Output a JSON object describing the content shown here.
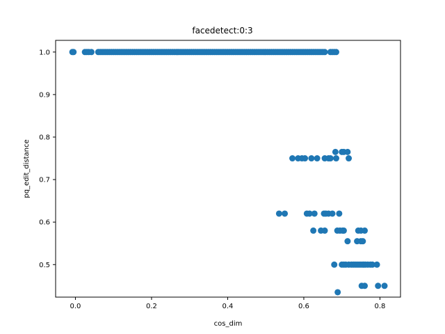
{
  "chart_data": {
    "type": "scatter",
    "title": "facedetect:0:3",
    "xlabel": "cos_dim",
    "ylabel": "pq_edit_distance",
    "xlim": [
      -0.052,
      0.854
    ],
    "ylim": [
      0.4235,
      1.0275
    ],
    "xticks": [
      0.0,
      0.2,
      0.4,
      0.6,
      0.8
    ],
    "xtick_labels": [
      "0.0",
      "0.2",
      "0.4",
      "0.6",
      "0.8"
    ],
    "yticks": [
      0.5,
      0.6,
      0.7,
      0.8,
      0.9,
      1.0
    ],
    "ytick_labels": [
      "0.5",
      "0.6",
      "0.7",
      "0.8",
      "0.9",
      "1.0"
    ],
    "grid": false,
    "marker_color": "#1f77b4",
    "series": [
      {
        "x": [
          -0.008,
          -0.005,
          0.025,
          0.03,
          0.035,
          0.042,
          0.06,
          0.065,
          0.07,
          0.075,
          0.08,
          0.085,
          0.09,
          0.095,
          0.1,
          0.105,
          0.11,
          0.115,
          0.12,
          0.125,
          0.13,
          0.135,
          0.14,
          0.145,
          0.15,
          0.155,
          0.16,
          0.165,
          0.17,
          0.175,
          0.18,
          0.185,
          0.19,
          0.195,
          0.2,
          0.205,
          0.21,
          0.215,
          0.22,
          0.225,
          0.23,
          0.235,
          0.24,
          0.245,
          0.25,
          0.255,
          0.26,
          0.265,
          0.27,
          0.275,
          0.28,
          0.285,
          0.29,
          0.295,
          0.3,
          0.305,
          0.31,
          0.315,
          0.32,
          0.325,
          0.33,
          0.335,
          0.34,
          0.345,
          0.35,
          0.355,
          0.36,
          0.365,
          0.37,
          0.375,
          0.38,
          0.385,
          0.39,
          0.395,
          0.4,
          0.405,
          0.41,
          0.415,
          0.42,
          0.425,
          0.43,
          0.435,
          0.44,
          0.445,
          0.45,
          0.455,
          0.46,
          0.465,
          0.47,
          0.475,
          0.48,
          0.485,
          0.49,
          0.495,
          0.5,
          0.505,
          0.51,
          0.515,
          0.52,
          0.525,
          0.53,
          0.535,
          0.54,
          0.545,
          0.55,
          0.555,
          0.56,
          0.565,
          0.57,
          0.575,
          0.58,
          0.585,
          0.59,
          0.595,
          0.6,
          0.605,
          0.61,
          0.615,
          0.62,
          0.625,
          0.63,
          0.635,
          0.64,
          0.645,
          0.65,
          0.655,
          0.67,
          0.675,
          0.68,
          0.685,
          0.57,
          0.585,
          0.595,
          0.603,
          0.62,
          0.635,
          0.655,
          0.665,
          0.67,
          0.685,
          0.718,
          0.683,
          0.7,
          0.705,
          0.715,
          0.535,
          0.55,
          0.608,
          0.615,
          0.628,
          0.653,
          0.658,
          0.665,
          0.675,
          0.693,
          0.625,
          0.645,
          0.655,
          0.688,
          0.695,
          0.702,
          0.705,
          0.743,
          0.75,
          0.76,
          0.715,
          0.74,
          0.75,
          0.755,
          0.68,
          0.7,
          0.705,
          0.71,
          0.718,
          0.725,
          0.73,
          0.735,
          0.74,
          0.745,
          0.75,
          0.755,
          0.758,
          0.762,
          0.768,
          0.775,
          0.78,
          0.792,
          0.752,
          0.76,
          0.795,
          0.812,
          0.689
        ],
        "y": [
          1.0,
          1.0,
          1.0,
          1.0,
          1.0,
          1.0,
          1.0,
          1.0,
          1.0,
          1.0,
          1.0,
          1.0,
          1.0,
          1.0,
          1.0,
          1.0,
          1.0,
          1.0,
          1.0,
          1.0,
          1.0,
          1.0,
          1.0,
          1.0,
          1.0,
          1.0,
          1.0,
          1.0,
          1.0,
          1.0,
          1.0,
          1.0,
          1.0,
          1.0,
          1.0,
          1.0,
          1.0,
          1.0,
          1.0,
          1.0,
          1.0,
          1.0,
          1.0,
          1.0,
          1.0,
          1.0,
          1.0,
          1.0,
          1.0,
          1.0,
          1.0,
          1.0,
          1.0,
          1.0,
          1.0,
          1.0,
          1.0,
          1.0,
          1.0,
          1.0,
          1.0,
          1.0,
          1.0,
          1.0,
          1.0,
          1.0,
          1.0,
          1.0,
          1.0,
          1.0,
          1.0,
          1.0,
          1.0,
          1.0,
          1.0,
          1.0,
          1.0,
          1.0,
          1.0,
          1.0,
          1.0,
          1.0,
          1.0,
          1.0,
          1.0,
          1.0,
          1.0,
          1.0,
          1.0,
          1.0,
          1.0,
          1.0,
          1.0,
          1.0,
          1.0,
          1.0,
          1.0,
          1.0,
          1.0,
          1.0,
          1.0,
          1.0,
          1.0,
          1.0,
          1.0,
          1.0,
          1.0,
          1.0,
          1.0,
          1.0,
          1.0,
          1.0,
          1.0,
          1.0,
          1.0,
          1.0,
          1.0,
          1.0,
          1.0,
          1.0,
          1.0,
          1.0,
          1.0,
          1.0,
          1.0,
          1.0,
          1.0,
          1.0,
          1.0,
          1.0,
          0.75,
          0.75,
          0.75,
          0.75,
          0.75,
          0.75,
          0.75,
          0.75,
          0.75,
          0.75,
          0.75,
          0.765,
          0.765,
          0.765,
          0.765,
          0.62,
          0.62,
          0.62,
          0.62,
          0.62,
          0.62,
          0.62,
          0.62,
          0.62,
          0.62,
          0.58,
          0.58,
          0.58,
          0.58,
          0.58,
          0.58,
          0.58,
          0.58,
          0.58,
          0.58,
          0.555,
          0.555,
          0.555,
          0.555,
          0.5,
          0.5,
          0.5,
          0.5,
          0.5,
          0.5,
          0.5,
          0.5,
          0.5,
          0.5,
          0.5,
          0.5,
          0.5,
          0.5,
          0.5,
          0.5,
          0.5,
          0.5,
          0.45,
          0.45,
          0.45,
          0.45,
          0.435
        ]
      }
    ]
  }
}
